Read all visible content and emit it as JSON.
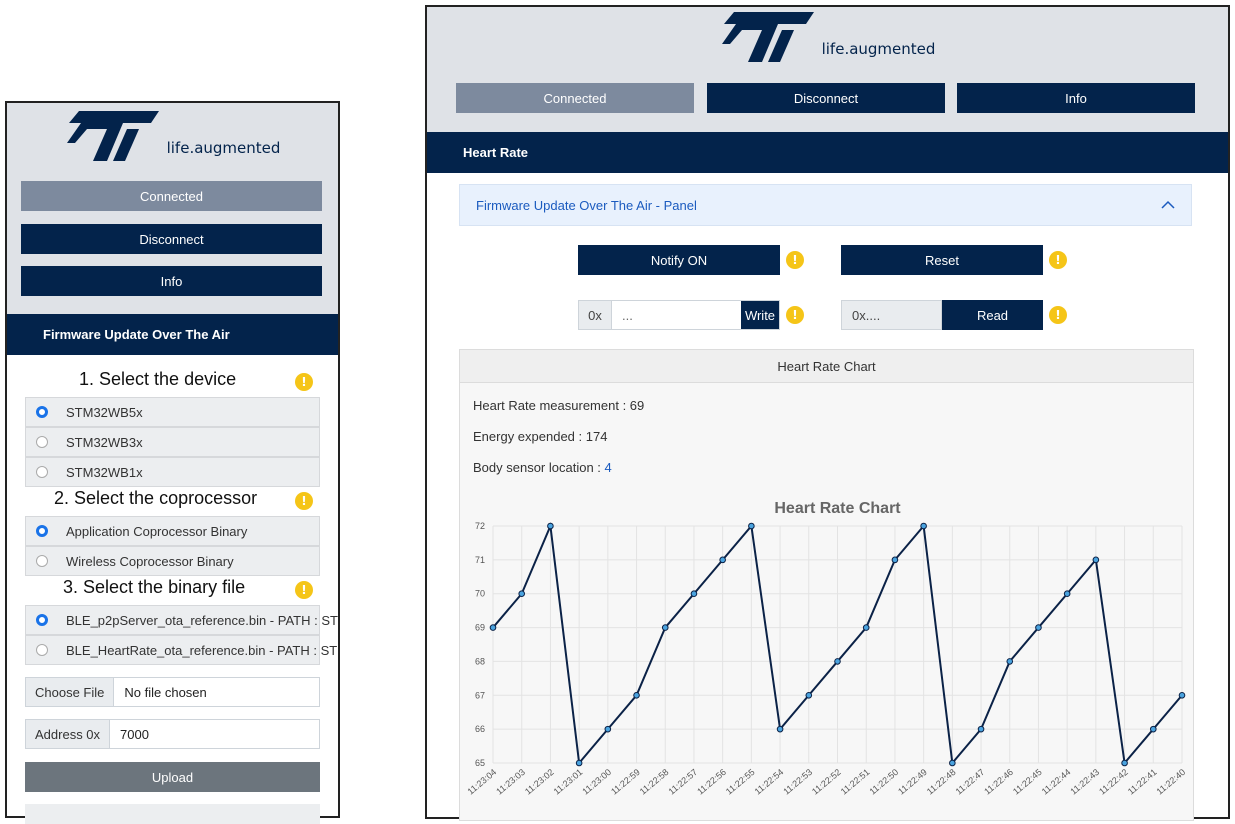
{
  "left": {
    "logo_text": "life.augmented",
    "buttons": {
      "connected": "Connected",
      "disconnect": "Disconnect",
      "info": "Info"
    },
    "section_title": "Firmware Update Over The Air",
    "step1": "1. Select the device",
    "devices": [
      "STM32WB5x",
      "STM32WB3x",
      "STM32WB1x"
    ],
    "step2": "2. Select the coprocessor",
    "coprocessors": [
      "Application Coprocessor Binary",
      "Wireless Coprocessor Binary"
    ],
    "step3": "3. Select the binary file",
    "binaries": [
      "BLE_p2pServer_ota_reference.bin - PATH : ST",
      "BLE_HeartRate_ota_reference.bin - PATH : ST"
    ],
    "choose_file": "Choose File",
    "no_file": "No file chosen",
    "address_label": "Address 0x",
    "address_value": "7000",
    "upload": "Upload"
  },
  "right": {
    "logo_text": "life.augmented",
    "buttons": {
      "connected": "Connected",
      "disconnect": "Disconnect",
      "info": "Info"
    },
    "section_title": "Heart Rate",
    "accordion_title": "Firmware Update Over The Air - Panel",
    "notify": "Notify ON",
    "reset": "Reset",
    "write_prefix": "0x",
    "write_placeholder": "...",
    "write": "Write",
    "read_placeholder": "0x....",
    "read": "Read",
    "chart_caption": "Heart Rate Chart",
    "hr_label": "Heart Rate measurement : ",
    "hr_value": "69",
    "energy_label": "Energy expended : ",
    "energy_value": "174",
    "location_label": "Body sensor location : ",
    "location_value": "4"
  },
  "colors": {
    "navy": "#03234b",
    "grey_button": "#7d8a9e",
    "header_bg": "#dfe2e7",
    "info_yellow": "#f5c518",
    "radio_blue": "#1a73e8"
  },
  "chart_data": {
    "type": "line",
    "title": "Heart Rate Chart",
    "categories": [
      "11:23:04",
      "11:23:03",
      "11:23:02",
      "11:23:01",
      "11:23:00",
      "11:22:59",
      "11:22:58",
      "11:22:57",
      "11:22:56",
      "11:22:55",
      "11:22:54",
      "11:22:53",
      "11:22:52",
      "11:22:51",
      "11:22:50",
      "11:22:49",
      "11:22:48",
      "11:22:47",
      "11:22:46",
      "11:22:45",
      "11:22:44",
      "11:22:43",
      "11:22:42",
      "11:22:41",
      "11:22:40"
    ],
    "values": [
      69,
      70,
      72,
      65,
      66,
      67,
      69,
      70,
      71,
      72,
      66,
      67,
      68,
      69,
      71,
      72,
      65,
      66,
      68,
      69,
      70,
      71,
      65,
      66,
      67
    ],
    "ylim": [
      65,
      72
    ],
    "yticks": [
      72,
      71,
      70,
      69,
      68,
      67,
      66,
      65
    ],
    "grid": true
  }
}
